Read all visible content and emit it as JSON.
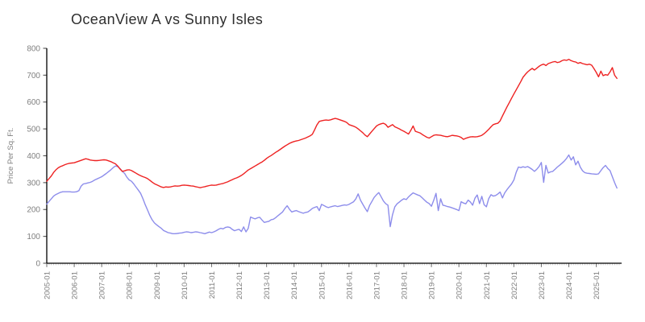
{
  "title": "OceanView A vs Sunny Isles",
  "colors": {
    "series_red": "#ee2222",
    "series_blue": "#8d8deb",
    "axis": "#000000",
    "tick_label": "#7f7f7f",
    "major_tick": "#777777",
    "minor_tick": "#c8c8c8",
    "title_text": "#2f2f2f"
  },
  "chart_data": {
    "type": "line",
    "title": "OceanView A vs Sunny Isles",
    "xlabel": "",
    "ylabel": "Price Per Sq. Ft.",
    "ylim": [
      0,
      800
    ],
    "yticks": [
      0,
      100,
      200,
      300,
      400,
      500,
      600,
      700,
      800
    ],
    "xtick_labels": [
      "2005-01",
      "2006-01",
      "2007-01",
      "2008-01",
      "2009-01",
      "2010-01",
      "2011-01",
      "2012-01",
      "2013-01",
      "2014-01",
      "2015-01",
      "2016-01",
      "2017-01",
      "2018-01",
      "2019-01",
      "2020-01",
      "2021-01",
      "2022-01",
      "2023-01",
      "2024-01",
      "2025-01"
    ],
    "x_start": "2005-01",
    "x_end": "2025-10",
    "frequency": "monthly",
    "grid": false,
    "legend_position": "none",
    "series": [
      {
        "name": "OceanView A",
        "color": "#ee2222",
        "values": [
          305,
          315,
          325,
          338,
          348,
          355,
          360,
          363,
          367,
          370,
          372,
          373,
          374,
          377,
          380,
          383,
          386,
          389,
          387,
          384,
          383,
          382,
          382,
          383,
          384,
          385,
          384,
          381,
          378,
          374,
          370,
          362,
          351,
          342,
          344,
          347,
          348,
          345,
          340,
          335,
          330,
          326,
          322,
          319,
          315,
          309,
          302,
          296,
          292,
          288,
          284,
          282,
          284,
          283,
          284,
          286,
          288,
          287,
          288,
          290,
          291,
          290,
          289,
          288,
          287,
          285,
          283,
          281,
          283,
          285,
          287,
          289,
          291,
          290,
          291,
          293,
          295,
          297,
          300,
          303,
          307,
          311,
          315,
          318,
          322,
          327,
          333,
          340,
          347,
          352,
          357,
          362,
          367,
          372,
          377,
          383,
          390,
          396,
          401,
          407,
          413,
          418,
          424,
          430,
          436,
          441,
          446,
          450,
          453,
          455,
          457,
          460,
          463,
          466,
          470,
          474,
          480,
          497,
          515,
          528,
          530,
          532,
          533,
          532,
          534,
          537,
          539,
          537,
          534,
          531,
          528,
          524,
          516,
          513,
          510,
          506,
          500,
          493,
          486,
          477,
          471,
          481,
          491,
          501,
          511,
          516,
          519,
          521,
          517,
          506,
          511,
          516,
          508,
          504,
          500,
          495,
          491,
          486,
          481,
          495,
          511,
          491,
          488,
          485,
          479,
          474,
          469,
          466,
          471,
          476,
          478,
          477,
          476,
          474,
          472,
          471,
          473,
          476,
          475,
          474,
          472,
          468,
          461,
          465,
          468,
          470,
          471,
          470,
          471,
          473,
          476,
          482,
          490,
          498,
          508,
          516,
          519,
          521,
          530,
          548,
          565,
          582,
          598,
          614,
          630,
          645,
          660,
          676,
          692,
          703,
          712,
          719,
          725,
          719,
          726,
          733,
          738,
          741,
          736,
          743,
          746,
          749,
          751,
          747,
          749,
          754,
          757,
          755,
          759,
          754,
          751,
          749,
          744,
          747,
          743,
          741,
          739,
          741,
          737,
          724,
          710,
          694,
          715,
          698,
          702,
          700,
          712,
          728,
          700,
          688
        ]
      },
      {
        "name": "Sunny Isles",
        "color": "#8d8deb",
        "values": [
          220,
          230,
          240,
          250,
          256,
          260,
          264,
          266,
          266,
          266,
          266,
          265,
          265,
          266,
          270,
          287,
          295,
          297,
          299,
          301,
          305,
          310,
          314,
          318,
          322,
          328,
          334,
          341,
          348,
          356,
          362,
          360,
          352,
          342,
          334,
          320,
          310,
          305,
          295,
          283,
          272,
          260,
          240,
          218,
          198,
          178,
          162,
          150,
          143,
          136,
          130,
          122,
          118,
          114,
          112,
          110,
          110,
          111,
          112,
          113,
          115,
          117,
          116,
          114,
          115,
          117,
          116,
          114,
          112,
          110,
          113,
          116,
          114,
          117,
          121,
          126,
          130,
          128,
          133,
          135,
          133,
          126,
          121,
          124,
          126,
          118,
          135,
          117,
          130,
          172,
          168,
          165,
          169,
          171,
          161,
          152,
          154,
          156,
          162,
          164,
          170,
          177,
          184,
          191,
          204,
          214,
          201,
          191,
          194,
          196,
          192,
          189,
          186,
          189,
          191,
          197,
          204,
          208,
          211,
          196,
          219,
          215,
          210,
          207,
          210,
          212,
          214,
          211,
          213,
          215,
          217,
          216,
          219,
          224,
          229,
          240,
          258,
          235,
          220,
          205,
          192,
          215,
          230,
          245,
          255,
          263,
          248,
          232,
          222,
          216,
          136,
          180,
          210,
          221,
          228,
          235,
          240,
          237,
          247,
          255,
          262,
          258,
          254,
          251,
          243,
          235,
          227,
          222,
          212,
          235,
          260,
          196,
          240,
          216,
          214,
          211,
          209,
          206,
          203,
          200,
          196,
          229,
          224,
          221,
          235,
          228,
          216,
          242,
          254,
          222,
          249,
          218,
          210,
          240,
          255,
          250,
          252,
          258,
          265,
          243,
          262,
          274,
          285,
          295,
          310,
          338,
          358,
          356,
          359,
          357,
          360,
          355,
          349,
          342,
          350,
          360,
          375,
          301,
          364,
          336,
          340,
          342,
          350,
          358,
          365,
          372,
          380,
          390,
          403,
          384,
          396,
          366,
          380,
          358,
          344,
          337,
          335,
          334,
          333,
          332,
          331,
          333,
          345,
          356,
          364,
          353,
          345,
          322,
          300,
          280
        ]
      }
    ]
  }
}
